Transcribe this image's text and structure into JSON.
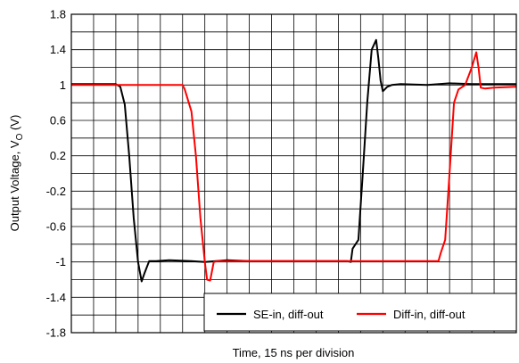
{
  "chart_data": {
    "type": "line",
    "xlabel": "Time, 15 ns per division",
    "ylabel_main": "Output Voltage, V",
    "ylabel_sub": "O",
    "ylabel_unit": " (V)",
    "ylim": [
      -1.8,
      1.8
    ],
    "xlim": [
      0,
      10
    ],
    "y_ticks": [
      "1.8",
      "1.4",
      "1",
      "0.6",
      "0.2",
      "-0.2",
      "-0.6",
      "-1",
      "-1.4",
      "-1.8"
    ],
    "grid": true,
    "legend_position": "bottom-right",
    "series": [
      {
        "name": "SE-in, diff-out",
        "color": "#000000",
        "points": [
          [
            0,
            1.01
          ],
          [
            1.0,
            1.01
          ],
          [
            1.1,
            0.98
          ],
          [
            1.2,
            0.78
          ],
          [
            1.3,
            0.2
          ],
          [
            1.4,
            -0.5
          ],
          [
            1.5,
            -1.0
          ],
          [
            1.58,
            -1.22
          ],
          [
            1.65,
            -1.12
          ],
          [
            1.75,
            -0.99
          ],
          [
            1.9,
            -0.99
          ],
          [
            2.2,
            -0.98
          ],
          [
            2.7,
            -0.99
          ],
          [
            3.0,
            -1.0
          ],
          [
            3.5,
            -0.98
          ],
          [
            4.0,
            -0.99
          ],
          [
            5.0,
            -0.99
          ],
          [
            6.0,
            -0.99
          ],
          [
            6.2,
            -0.99
          ],
          [
            6.28,
            -1.0
          ],
          [
            6.32,
            -0.85
          ],
          [
            6.45,
            -0.75
          ],
          [
            6.55,
            0.0
          ],
          [
            6.65,
            0.8
          ],
          [
            6.75,
            1.4
          ],
          [
            6.85,
            1.51
          ],
          [
            6.9,
            1.3
          ],
          [
            6.95,
            1.05
          ],
          [
            7.0,
            0.93
          ],
          [
            7.1,
            0.98
          ],
          [
            7.2,
            1.0
          ],
          [
            7.4,
            1.01
          ],
          [
            8.0,
            1.0
          ],
          [
            8.5,
            1.02
          ],
          [
            9.0,
            1.01
          ],
          [
            10,
            1.01
          ]
        ]
      },
      {
        "name": "Diff-in, diff-out",
        "color": "#ff0000",
        "points": [
          [
            0,
            1.0
          ],
          [
            2.5,
            1.0
          ],
          [
            2.55,
            0.95
          ],
          [
            2.7,
            0.7
          ],
          [
            2.8,
            0.2
          ],
          [
            2.9,
            -0.5
          ],
          [
            3.0,
            -1.0
          ],
          [
            3.05,
            -1.2
          ],
          [
            3.12,
            -1.21
          ],
          [
            3.2,
            -1.0
          ],
          [
            3.3,
            -0.99
          ],
          [
            4.0,
            -0.99
          ],
          [
            5.0,
            -0.99
          ],
          [
            6.0,
            -0.99
          ],
          [
            7.0,
            -0.99
          ],
          [
            8.0,
            -0.99
          ],
          [
            8.25,
            -0.99
          ],
          [
            8.3,
            -0.9
          ],
          [
            8.4,
            -0.75
          ],
          [
            8.5,
            0.0
          ],
          [
            8.6,
            0.8
          ],
          [
            8.7,
            0.95
          ],
          [
            8.85,
            1.0
          ],
          [
            9.0,
            1.2
          ],
          [
            9.1,
            1.37
          ],
          [
            9.15,
            1.2
          ],
          [
            9.2,
            0.97
          ],
          [
            9.3,
            0.96
          ],
          [
            9.5,
            0.97
          ],
          [
            10,
            0.98
          ]
        ]
      }
    ]
  }
}
